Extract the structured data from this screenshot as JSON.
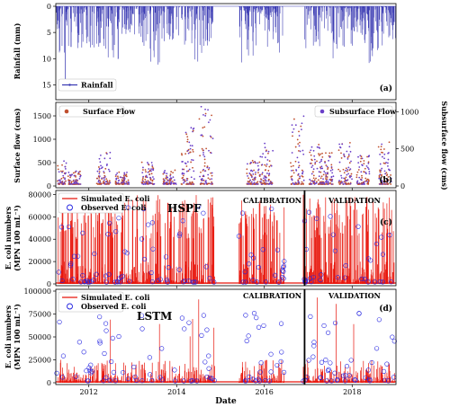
{
  "chart_data": [
    {
      "panel": "(a)",
      "type": "bar",
      "ylabel": "Rainfall (mm)",
      "ylim": [
        17.5,
        0
      ],
      "inverted_y": true,
      "yticks": [
        "0",
        "5",
        "10",
        "15"
      ],
      "legend": [
        "Rainfall"
      ],
      "legend_position": "bottom-left",
      "colors": {
        "rain": "#3b3bb3"
      },
      "x_domain": [
        "2011-04-01",
        "2019-01-01"
      ],
      "peak": {
        "date": "2011-06-20",
        "value": 16
      }
    },
    {
      "panel": "(b)",
      "type": "scatter",
      "ylabel_left": "Surface flow (cms)",
      "ylabel_right": "Subsurface flow (cms)",
      "ylim_left": [
        0,
        1750
      ],
      "ylim_right": [
        0,
        1100
      ],
      "yticks_left": [
        "0",
        "500",
        "1000",
        "1500"
      ],
      "yticks_right": [
        "0",
        "500",
        "1000"
      ],
      "series": [
        {
          "name": "Surface Flow",
          "color": "#c0502f",
          "max": 1700
        },
        {
          "name": "Subsurface Flow",
          "color": "#6a3fc8",
          "max": 1050
        }
      ],
      "legend_position": "top-left / top-right"
    },
    {
      "panel": "(c)",
      "type": "line",
      "model": "HSPF",
      "ylabel_line1": "E. coli numbers",
      "ylabel_line2": "(MPN 100 mL⁻¹)",
      "ylim": [
        0,
        82000
      ],
      "yticks": [
        "0",
        "20000",
        "40000",
        "60000",
        "80000"
      ],
      "series": [
        {
          "name": "Simulated E. coli",
          "color": "#e8160c"
        },
        {
          "name": "Observed E. coli",
          "color": "#2020e0"
        }
      ],
      "annotations": [
        "CALIBRATION",
        "VALIDATION"
      ],
      "split_date": "2016-12-01"
    },
    {
      "panel": "(d)",
      "type": "line",
      "model": "LSTM",
      "ylabel_line1": "E. coli numbers",
      "ylabel_line2": "(MPN 100 mL⁻¹)",
      "ylim": [
        0,
        100000
      ],
      "yticks": [
        "0",
        "25000",
        "50000",
        "75000",
        "100000"
      ],
      "series": [
        {
          "name": "Simulated E. coli",
          "color": "#e8160c"
        },
        {
          "name": "Observed E. coli",
          "color": "#2020e0"
        }
      ],
      "annotations": [
        "CALIBRATION",
        "VALIDATION"
      ],
      "split_date": "2016-12-01",
      "xlabel": "Date",
      "xticks": [
        "2012",
        "2014",
        "2016",
        "2018"
      ]
    }
  ]
}
